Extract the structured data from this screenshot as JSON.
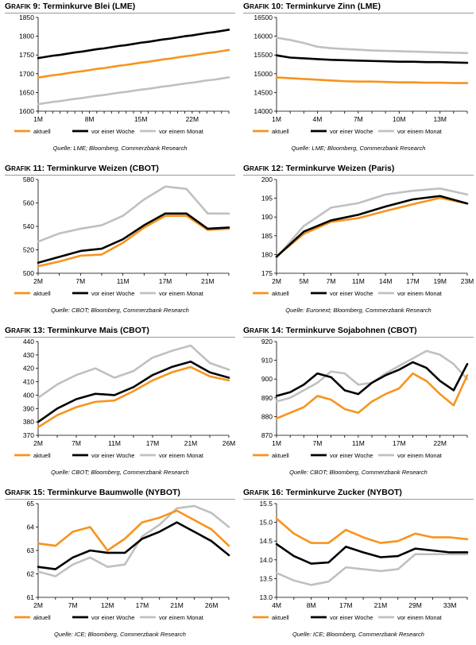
{
  "colors": {
    "aktuell": "#f7941d",
    "woche": "#000000",
    "monat": "#c0c0c0",
    "axis": "#000000"
  },
  "legend_labels": {
    "aktuell": "aktuell",
    "woche": "vor einer Woche",
    "monat": "vor einem Monat"
  },
  "charts": [
    {
      "prefix_cap": "G",
      "prefix_small": "RAFIK",
      "number": "9",
      "title": "Terminkurve Blei (LME)",
      "source": "Quelle: LME; Bloomberg, Commerzbank Research",
      "chart_data": {
        "type": "line",
        "xticks": [
          "1M",
          "8M",
          "15M",
          "22M"
        ],
        "xtick_index": [
          0,
          7,
          14,
          21
        ],
        "n": 27,
        "ylim": [
          1600,
          1850
        ],
        "yticks": [
          1600,
          1650,
          1700,
          1750,
          1800,
          1850
        ],
        "series": [
          {
            "name": "aktuell",
            "start": 1690,
            "end": 1763
          },
          {
            "name": "vor einer Woche",
            "start": 1742,
            "end": 1817
          },
          {
            "name": "vor einem Monat",
            "start": 1619,
            "end": 1690
          }
        ]
      }
    },
    {
      "prefix_cap": "G",
      "prefix_small": "RAFIK",
      "number": "10",
      "title": "Terminkurve Zinn (LME)",
      "source": "Quelle: LME; Bloomberg, Commerzbank Research",
      "chart_data": {
        "type": "line",
        "xticks": [
          "1M",
          "4M",
          "7M",
          "10M",
          "13M"
        ],
        "xtick_index": [
          0,
          3,
          6,
          9,
          12
        ],
        "n": 15,
        "ylim": [
          14000,
          16500
        ],
        "yticks": [
          14000,
          14500,
          15000,
          15500,
          16000,
          16500
        ],
        "series": [
          {
            "name": "aktuell",
            "values": [
              14900,
              14880,
              14860,
              14840,
              14820,
              14800,
              14790,
              14790,
              14780,
              14770,
              14770,
              14760,
              14760,
              14750,
              14750
            ]
          },
          {
            "name": "vor einer Woche",
            "values": [
              15490,
              15430,
              15410,
              15390,
              15370,
              15360,
              15350,
              15340,
              15330,
              15320,
              15320,
              15310,
              15310,
              15300,
              15290
            ]
          },
          {
            "name": "vor einem Monat",
            "values": [
              15960,
              15900,
              15820,
              15720,
              15680,
              15660,
              15640,
              15620,
              15610,
              15600,
              15590,
              15580,
              15570,
              15560,
              15550
            ]
          }
        ]
      }
    },
    {
      "prefix_cap": "G",
      "prefix_small": "RAFIK",
      "number": "11",
      "title": "Terminkurve Weizen (CBOT)",
      "source": "Quelle: CBOT; Bloomberg, Commerzbank Research",
      "chart_data": {
        "type": "line",
        "xticks": [
          "2M",
          "7M",
          "11M",
          "17M",
          "21M"
        ],
        "xtick_index": [
          0,
          2,
          4,
          6,
          8
        ],
        "n": 10,
        "ylim": [
          500,
          580
        ],
        "yticks": [
          500,
          520,
          540,
          560,
          580
        ],
        "series": [
          {
            "name": "aktuell",
            "values": [
              506,
              510,
              515,
              516,
              526,
              539,
              549,
              549,
              537,
              538
            ]
          },
          {
            "name": "vor einer Woche",
            "values": [
              509,
              514,
              519,
              521,
              529,
              541,
              551,
              551,
              538,
              539
            ]
          },
          {
            "name": "vor einem Monat",
            "values": [
              527,
              534,
              538,
              541,
              549,
              563,
              574,
              572,
              551,
              551
            ]
          }
        ]
      }
    },
    {
      "prefix_cap": "G",
      "prefix_small": "RAFIK",
      "number": "12",
      "title": "Terminkurve Weizen (Paris)",
      "source": "Quelle: Euronext; Bloomberg, Commerzbank Research",
      "chart_data": {
        "type": "line",
        "xticks": [
          "2M",
          "5M",
          "7M",
          "11M",
          "14M",
          "17M",
          "19M",
          "23M"
        ],
        "xtick_index": [
          0,
          1,
          2,
          3,
          4,
          5,
          6,
          7
        ],
        "n": 8,
        "ylim": [
          175,
          200
        ],
        "yticks": [
          175,
          180,
          185,
          190,
          195,
          200
        ],
        "series": [
          {
            "name": "aktuell",
            "values": [
              179.5,
              185.5,
              188.7,
              189.7,
              191.6,
              193.4,
              195.1,
              193.6
            ]
          },
          {
            "name": "vor einer Woche",
            "values": [
              179.4,
              186.1,
              189.1,
              190.6,
              192.8,
              194.7,
              195.6,
              193.6
            ]
          },
          {
            "name": "vor einem Monat",
            "values": [
              179.2,
              187.6,
              192.5,
              193.7,
              196.0,
              197.0,
              197.6,
              196.0
            ]
          }
        ]
      }
    },
    {
      "prefix_cap": "G",
      "prefix_small": "RAFIK",
      "number": "13",
      "title": "Terminkurve Mais (CBOT)",
      "source": "Quelle: CBOT; Bloomberg, Commerzbank Research",
      "chart_data": {
        "type": "line",
        "xticks": [
          "2M",
          "7M",
          "11M",
          "17M",
          "21M",
          "26M"
        ],
        "xtick_index": [
          0,
          2,
          4,
          6,
          8,
          10
        ],
        "n": 11,
        "ylim": [
          370,
          440
        ],
        "yticks": [
          370,
          380,
          390,
          400,
          410,
          420,
          430,
          440
        ],
        "series": [
          {
            "name": "aktuell",
            "values": [
              376,
              385,
              391,
              395,
              396,
              403,
              411,
              417,
              421,
              414,
              411
            ]
          },
          {
            "name": "vor einer Woche",
            "values": [
              380,
              390,
              397,
              401,
              400,
              406,
              415,
              421,
              425,
              417,
              413
            ]
          },
          {
            "name": "vor einem Monat",
            "values": [
              398,
              408,
              415,
              420,
              413,
              418,
              428,
              433,
              437,
              424,
              419
            ]
          }
        ]
      }
    },
    {
      "prefix_cap": "G",
      "prefix_small": "RAFIK",
      "number": "14",
      "title": "Terminkurve Sojabohnen (CBOT)",
      "source": "Quelle: CBOT; Bloomberg, Commerzbank Research",
      "chart_data": {
        "type": "line",
        "xticks": [
          "1M",
          "7M",
          "11M",
          "17M",
          "22M"
        ],
        "xtick_index": [
          0,
          3,
          6,
          9,
          12
        ],
        "n": 15,
        "ylim": [
          870,
          920
        ],
        "yticks": [
          870,
          880,
          890,
          900,
          910,
          920
        ],
        "series": [
          {
            "name": "aktuell",
            "values": [
              879,
              882,
              885,
              891,
              889,
              884,
              882,
              888,
              892,
              895,
              903,
              899,
              892,
              886,
              902
            ]
          },
          {
            "name": "vor einer Woche",
            "values": [
              891,
              893,
              897,
              903,
              901,
              894,
              892,
              898,
              902,
              905,
              909,
              906,
              899,
              894,
              908
            ]
          },
          {
            "name": "vor einem Monat",
            "values": [
              888,
              890,
              894,
              898,
              904,
              903,
              897,
              898,
              903,
              907,
              911,
              915,
              913,
              908,
              900
            ]
          }
        ]
      }
    },
    {
      "prefix_cap": "G",
      "prefix_small": "RAFIK",
      "number": "15",
      "title": "Terminkurve Baumwolle (NYBOT)",
      "source": "Quelle: ICE; Bloomberg, Commerzbank Research",
      "chart_data": {
        "type": "line",
        "xticks": [
          "2M",
          "7M",
          "12M",
          "17M",
          "21M",
          "26M"
        ],
        "xtick_index": [
          0,
          2,
          4,
          6,
          8,
          10
        ],
        "n": 12,
        "ylim": [
          61,
          65
        ],
        "yticks": [
          61,
          62,
          63,
          64,
          65
        ],
        "series": [
          {
            "name": "aktuell",
            "values": [
              63.3,
              63.2,
              63.8,
              64.0,
              63.0,
              63.5,
              64.2,
              64.4,
              64.7,
              64.3,
              63.9,
              63.2
            ]
          },
          {
            "name": "vor einer Woche",
            "values": [
              62.3,
              62.2,
              62.7,
              63.0,
              62.9,
              62.9,
              63.5,
              63.8,
              64.2,
              63.8,
              63.4,
              62.8
            ]
          },
          {
            "name": "vor einem Monat",
            "values": [
              62.1,
              61.9,
              62.4,
              62.7,
              62.3,
              62.4,
              63.6,
              64.1,
              64.8,
              64.9,
              64.6,
              64.0
            ]
          }
        ]
      }
    },
    {
      "prefix_cap": "G",
      "prefix_small": "RAFIK",
      "number": "16",
      "title": "Terminkurve Zucker (NYBOT)",
      "source": "Quelle: ICE; Bloomberg, Commerzbank Research",
      "chart_data": {
        "type": "line",
        "xticks": [
          "4M",
          "8M",
          "17M",
          "21M",
          "29M",
          "33M"
        ],
        "xtick_index": [
          0,
          2,
          4,
          6,
          8,
          10
        ],
        "n": 12,
        "ylim": [
          13.0,
          15.5
        ],
        "yticks": [
          13.0,
          13.5,
          14.0,
          14.5,
          15.0,
          15.5
        ],
        "series": [
          {
            "name": "aktuell",
            "values": [
              15.1,
              14.7,
              14.45,
              14.45,
              14.8,
              14.6,
              14.45,
              14.5,
              14.7,
              14.6,
              14.6,
              14.55
            ]
          },
          {
            "name": "vor einer Woche",
            "values": [
              14.42,
              14.1,
              13.9,
              13.93,
              14.35,
              14.2,
              14.07,
              14.1,
              14.3,
              14.25,
              14.2,
              14.2
            ]
          },
          {
            "name": "vor einem Monat",
            "values": [
              13.65,
              13.45,
              13.33,
              13.42,
              13.8,
              13.75,
              13.7,
              13.75,
              14.15,
              14.15,
              14.15,
              14.15
            ]
          }
        ]
      }
    }
  ]
}
